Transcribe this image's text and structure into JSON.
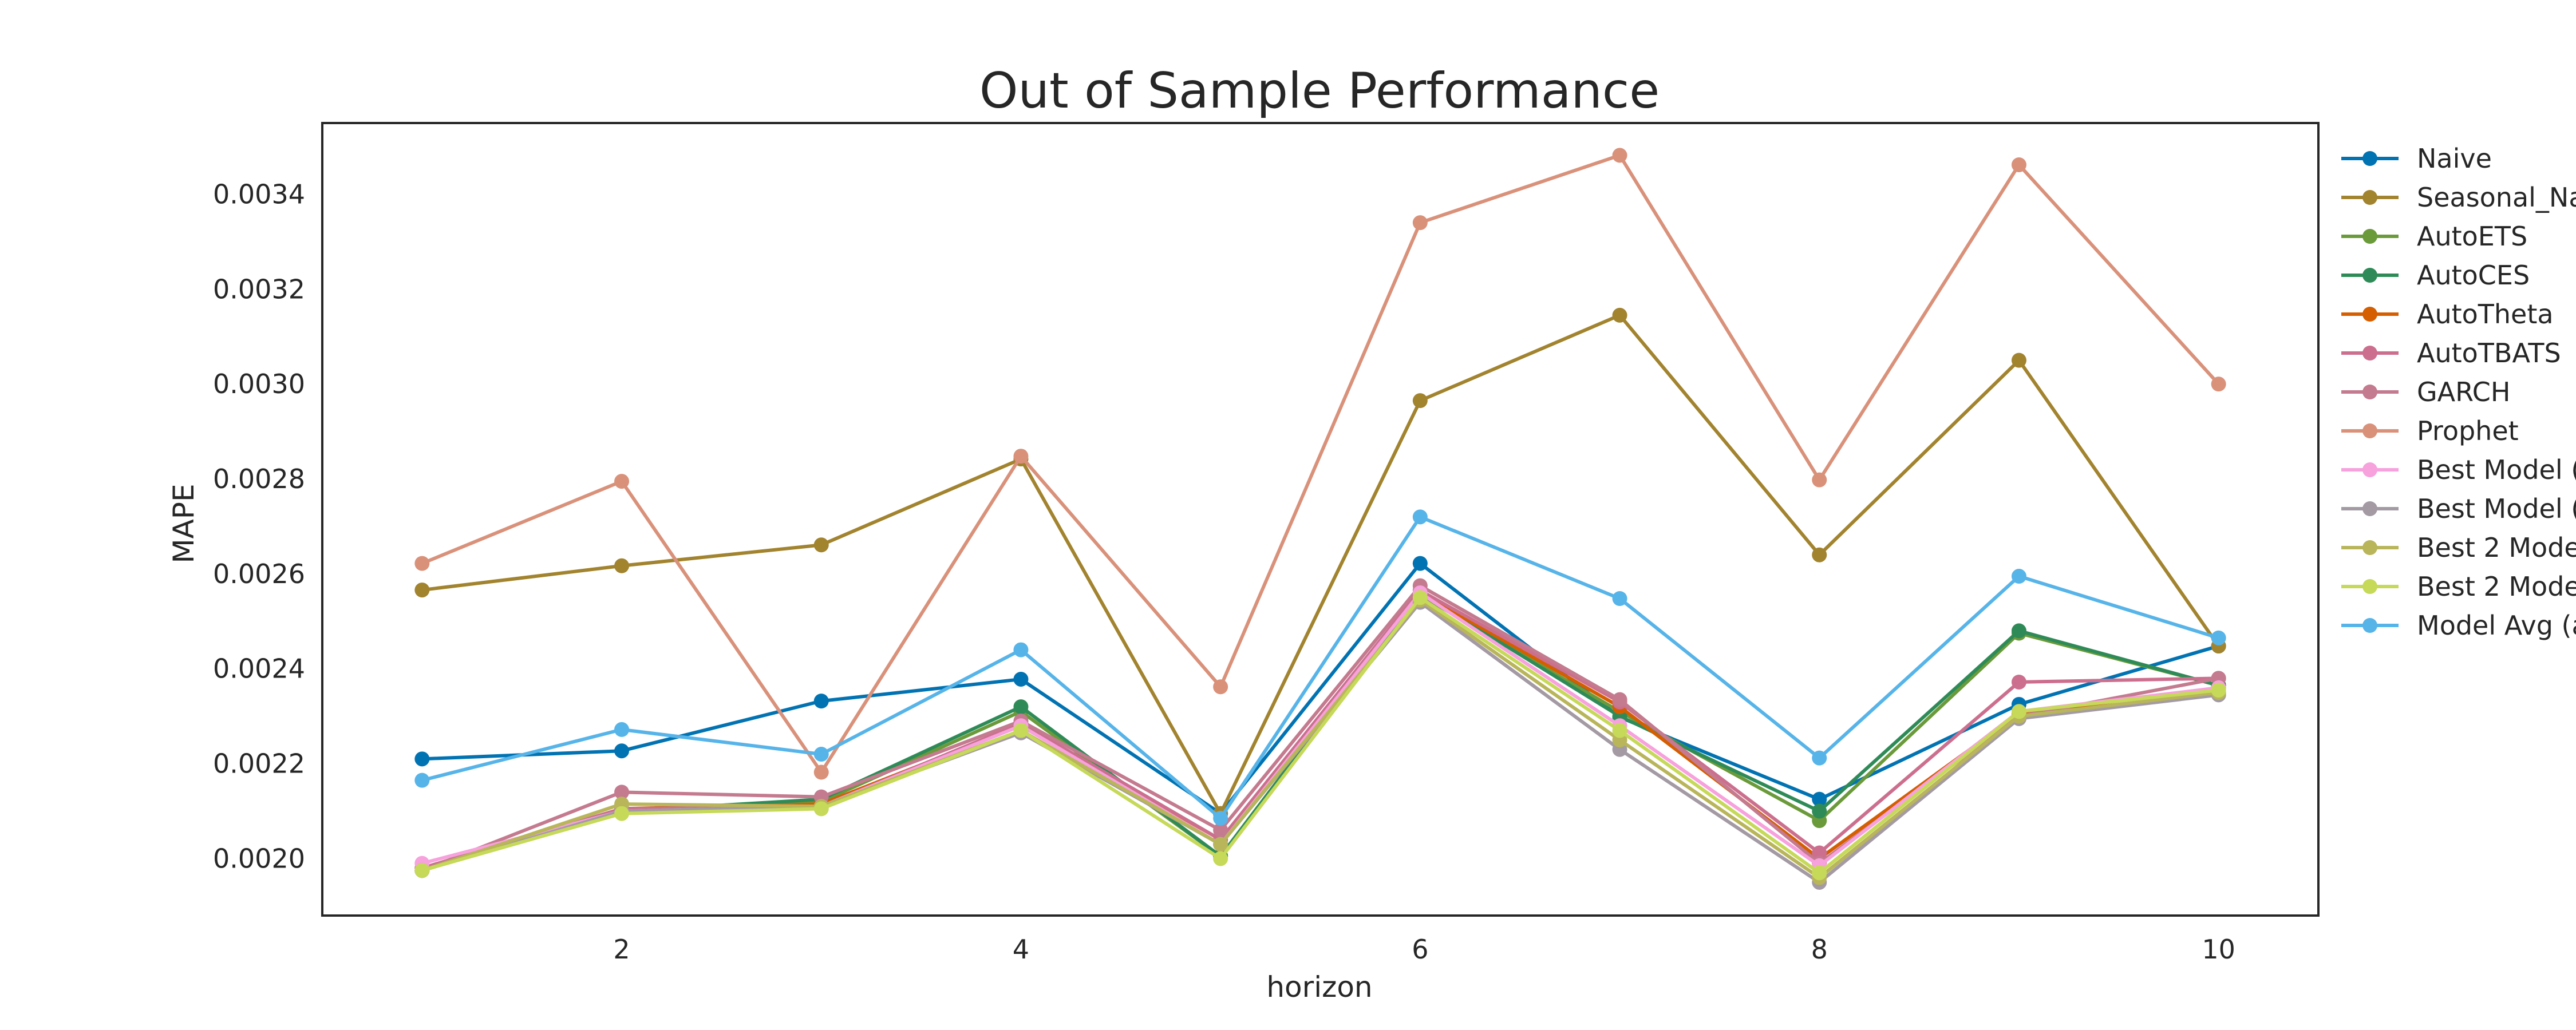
{
  "chart_data": {
    "type": "line",
    "title": "Out of Sample Performance",
    "xlabel": "horizon",
    "ylabel": "MAPE",
    "xlim": [
      0.5,
      10.5
    ],
    "ylim": [
      0.00188,
      0.00355
    ],
    "x_ticks": [
      2,
      4,
      6,
      8,
      10
    ],
    "y_ticks": [
      0.002,
      0.0022,
      0.0024,
      0.0026,
      0.0028,
      0.003,
      0.0032,
      0.0034
    ],
    "y_tick_labels": [
      "0.0020",
      "0.0022",
      "0.0024",
      "0.0026",
      "0.0028",
      "0.0030",
      "0.0032",
      "0.0034"
    ],
    "legend_position": "outside-right",
    "grid": false,
    "x": [
      1,
      2,
      3,
      4,
      5,
      6,
      7,
      8,
      9,
      10
    ],
    "series": [
      {
        "name": "Naive",
        "color": "#0173b2",
        "values": [
          0.00221,
          0.002227,
          0.002332,
          0.002378,
          0.002095,
          0.002622,
          0.002298,
          0.002125,
          0.002325,
          0.002448
        ]
      },
      {
        "name": "Seasonal_Na",
        "color": "#a2832e",
        "values": [
          0.002566,
          0.002617,
          0.002661,
          0.002842,
          0.002095,
          0.002965,
          0.003145,
          0.00264,
          0.00305,
          0.002448
        ]
      },
      {
        "name": "AutoETS",
        "color": "#6b9a3a",
        "values": [
          0.001975,
          0.0021,
          0.00212,
          0.00231,
          0.002005,
          0.002555,
          0.00231,
          0.00208,
          0.002475,
          0.002365
        ]
      },
      {
        "name": "AutoCES",
        "color": "#2e8b57",
        "values": [
          0.001975,
          0.0021,
          0.002125,
          0.00232,
          0.002005,
          0.00256,
          0.0023,
          0.0021,
          0.00248,
          0.002365
        ]
      },
      {
        "name": "AutoTheta",
        "color": "#d55e00",
        "values": [
          0.00198,
          0.002105,
          0.002115,
          0.00228,
          0.00204,
          0.00256,
          0.00232,
          0.002,
          0.002305,
          0.00236
        ]
      },
      {
        "name": "AutoTBATS",
        "color": "#cc6f8e",
        "values": [
          0.00198,
          0.002105,
          0.00211,
          0.002285,
          0.00204,
          0.002565,
          0.00233,
          0.002012,
          0.002372,
          0.00238
        ]
      },
      {
        "name": "GARCH",
        "color": "#c47a8f",
        "values": [
          0.001975,
          0.00214,
          0.00213,
          0.00229,
          0.00206,
          0.002575,
          0.002335,
          0.00199,
          0.0023,
          0.00238
        ]
      },
      {
        "name": "Prophet",
        "color": "#d9917a",
        "values": [
          0.002622,
          0.002795,
          0.002182,
          0.002848,
          0.002362,
          0.00334,
          0.003482,
          0.002798,
          0.003462,
          0.003
        ]
      },
      {
        "name": "Best Model (",
        "color": "#f7a1dd",
        "values": [
          0.00199,
          0.0021,
          0.00211,
          0.00228,
          0.00203,
          0.00256,
          0.00228,
          0.001985,
          0.00231,
          0.00236
        ]
      },
      {
        "name": "Best Model (",
        "color": "#a39aa4",
        "values": [
          0.001975,
          0.0021,
          0.00211,
          0.002265,
          0.00203,
          0.00254,
          0.00223,
          0.00195,
          0.002295,
          0.002345
        ]
      },
      {
        "name": "Best 2 Mode",
        "color": "#b8b55a",
        "values": [
          0.001975,
          0.002115,
          0.00211,
          0.00227,
          0.00203,
          0.002545,
          0.00225,
          0.00196,
          0.0023,
          0.00235
        ]
      },
      {
        "name": "Best 2 Mode",
        "color": "#c6d959",
        "values": [
          0.001975,
          0.002095,
          0.002105,
          0.00227,
          0.002,
          0.00255,
          0.00227,
          0.00197,
          0.00231,
          0.002355
        ]
      },
      {
        "name": "Model Avg (a",
        "color": "#56b4e9",
        "values": [
          0.002165,
          0.002272,
          0.00222,
          0.00244,
          0.002085,
          0.00272,
          0.002548,
          0.002212,
          0.002595,
          0.002465
        ]
      }
    ]
  }
}
